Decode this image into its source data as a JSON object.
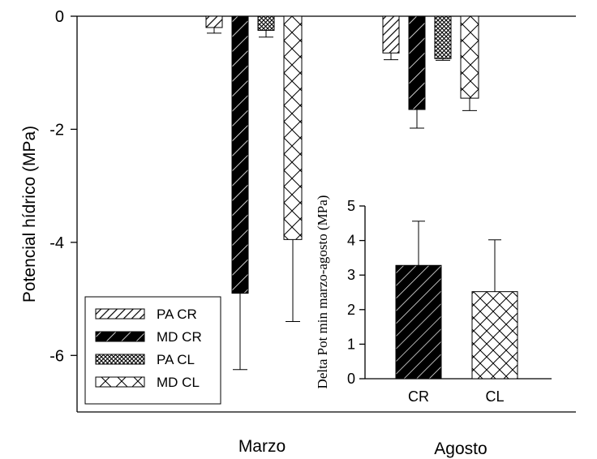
{
  "chart_data": [
    {
      "type": "bar",
      "ylabel": "Potencial hídrico (MPa)",
      "xlabel": "",
      "ylim": [
        -7,
        0
      ],
      "yticks": [
        "0",
        "-2",
        "-4",
        "-6"
      ],
      "categories": [
        "Marzo",
        "Agosto"
      ],
      "error_direction": "down",
      "series": [
        {
          "name": "PA CR",
          "values": [
            -0.2,
            -0.65
          ],
          "errors": [
            0.1,
            0.12
          ]
        },
        {
          "name": "MD CR",
          "values": [
            -4.9,
            -1.65
          ],
          "errors": [
            1.35,
            0.33
          ]
        },
        {
          "name": "PA CL",
          "values": [
            -0.25,
            -0.75
          ],
          "errors": [
            0.12,
            0.03
          ]
        },
        {
          "name": "MD CL",
          "values": [
            -3.95,
            -1.45
          ],
          "errors": [
            1.45,
            0.22
          ]
        }
      ],
      "legend": {
        "placement": "lower-left",
        "entries": [
          "PA CR",
          "MD CR",
          "PA CL",
          "MD CL"
        ]
      },
      "patterns": {
        "PA CR": "sparse-diagonal-hatch",
        "MD CR": "bold-diagonal-hatch",
        "PA CL": "dense-crosshatch",
        "MD CL": "wide-crosshatch"
      }
    },
    {
      "type": "bar",
      "ylabel": "Delta Pot min marzo-agosto (MPa)",
      "xlabel": "",
      "ylim": [
        0,
        5
      ],
      "yticks": [
        "0",
        "1",
        "2",
        "3",
        "4",
        "5"
      ],
      "categories": [
        "CR",
        "CL"
      ],
      "values": [
        3.28,
        2.52
      ],
      "errors": [
        1.28,
        1.5
      ],
      "error_direction": "up",
      "placement": "inset-lower-right",
      "patterns": [
        "bold-diagonal-hatch",
        "wide-crosshatch"
      ]
    }
  ],
  "colors": {
    "ink": "#000000",
    "background": "#ffffff"
  }
}
